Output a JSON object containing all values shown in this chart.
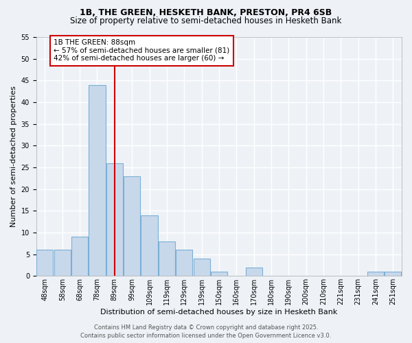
{
  "title_line1": "1B, THE GREEN, HESKETH BANK, PRESTON, PR4 6SB",
  "title_line2": "Size of property relative to semi-detached houses in Hesketh Bank",
  "xlabel": "Distribution of semi-detached houses by size in Hesketh Bank",
  "ylabel": "Number of semi-detached properties",
  "bin_labels": [
    "48sqm",
    "58sqm",
    "68sqm",
    "78sqm",
    "89sqm",
    "99sqm",
    "109sqm",
    "119sqm",
    "129sqm",
    "139sqm",
    "150sqm",
    "160sqm",
    "170sqm",
    "180sqm",
    "190sqm",
    "200sqm",
    "210sqm",
    "221sqm",
    "231sqm",
    "241sqm",
    "251sqm"
  ],
  "heights": [
    6,
    6,
    9,
    44,
    26,
    23,
    14,
    8,
    6,
    4,
    1,
    0,
    2,
    0,
    0,
    0,
    0,
    0,
    0,
    1,
    1
  ],
  "bar_color": "#c8d8eb",
  "bar_edge_color": "#7aafd4",
  "vline_index": 4,
  "vline_color": "#cc0000",
  "annotation_text": "1B THE GREEN: 88sqm\n← 57% of semi-detached houses are smaller (81)\n42% of semi-detached houses are larger (60) →",
  "annotation_box_color": "#ffffff",
  "annotation_box_edge_color": "#cc0000",
  "ylim": [
    0,
    55
  ],
  "yticks": [
    0,
    5,
    10,
    15,
    20,
    25,
    30,
    35,
    40,
    45,
    50,
    55
  ],
  "background_color": "#eef2f7",
  "grid_color": "#ffffff",
  "footer_text": "Contains HM Land Registry data © Crown copyright and database right 2025.\nContains public sector information licensed under the Open Government Licence v3.0.",
  "title_fontsize": 9,
  "subtitle_fontsize": 8.5,
  "axis_label_fontsize": 8,
  "tick_fontsize": 7,
  "annotation_fontsize": 7.5,
  "footer_fontsize": 6
}
